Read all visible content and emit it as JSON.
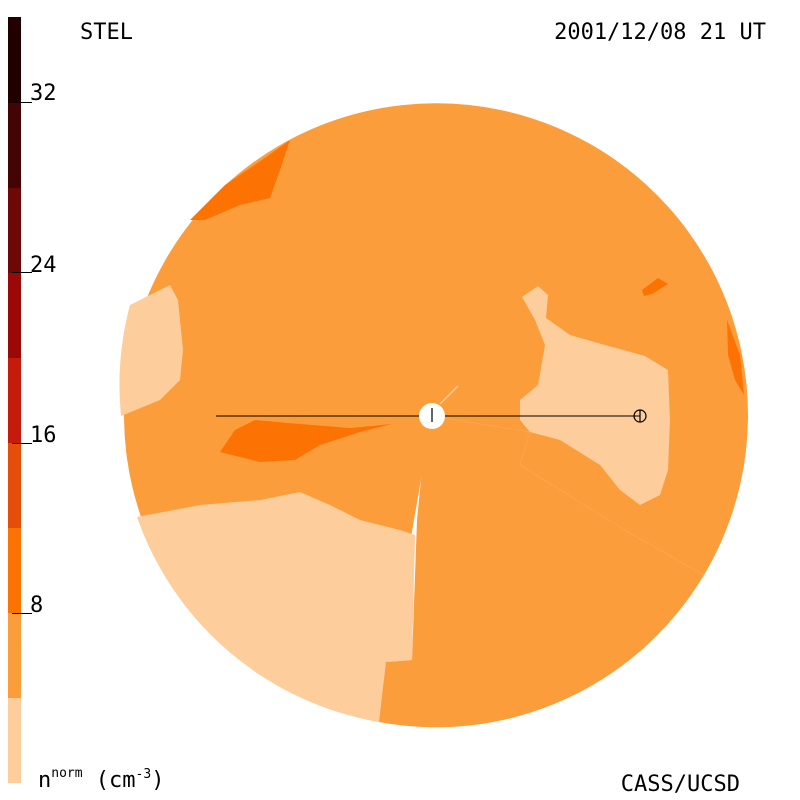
{
  "header": {
    "observatory": "STEL",
    "timestamp": "2001/12/08 21 UT"
  },
  "footer": {
    "credit": "CASS/UCSD",
    "unit_base": "n",
    "unit_super": "norm",
    "unit_paren_open": " (cm",
    "unit_exp": "-3",
    "unit_paren_close": ")"
  },
  "colorbar": {
    "tick_labels": [
      "32",
      "24",
      "16",
      "8"
    ],
    "tick_values": [
      32,
      24,
      16,
      8
    ],
    "range": [
      0,
      36
    ],
    "levels": [
      {
        "min": 0,
        "max": 4,
        "color": "#fdcd9b"
      },
      {
        "min": 4,
        "max": 8,
        "color": "#fc9d3c"
      },
      {
        "min": 8,
        "max": 12,
        "color": "#fc7303"
      },
      {
        "min": 12,
        "max": 16,
        "color": "#e44d0a"
      },
      {
        "min": 16,
        "max": 20,
        "color": "#c41b0b"
      },
      {
        "min": 20,
        "max": 24,
        "color": "#9a0808"
      },
      {
        "min": 24,
        "max": 28,
        "color": "#6e0707"
      },
      {
        "min": 28,
        "max": 32,
        "color": "#440404"
      },
      {
        "min": 32,
        "max": 36,
        "color": "#220000"
      }
    ]
  },
  "map": {
    "earth_symbol": "⊕",
    "colors": {
      "low": "#fdcd9b",
      "mid": "#fc9d3c",
      "high": "#fc7303"
    }
  }
}
